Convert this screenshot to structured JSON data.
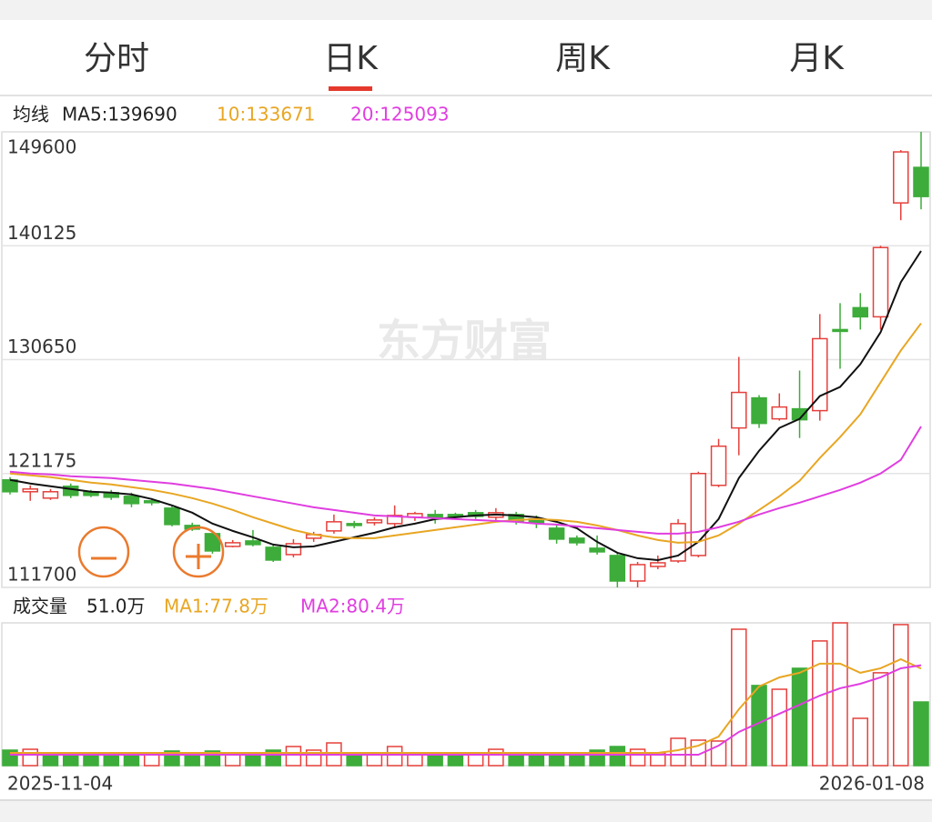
{
  "tabs": [
    "分时",
    "日K",
    "周K",
    "月K"
  ],
  "selected_tab": 1,
  "watermark": "东方财富",
  "chart_data": [
    {
      "type": "candlestick",
      "legend_title": "均线",
      "ylim": [
        111700,
        149600
      ],
      "yticks": [
        149600,
        140125,
        130650,
        121175,
        111700
      ],
      "grid": true,
      "up_color": "#e5403b",
      "down_color": "#3dac3a",
      "open": [
        120644,
        119659,
        119128,
        120114,
        119659,
        119583,
        119280,
        118901,
        118295,
        116854,
        116172,
        115111,
        115566,
        115035,
        114429,
        115793,
        116400,
        117006,
        117082,
        117006,
        117537,
        117764,
        117764,
        117916,
        117537,
        117764,
        117385,
        116627,
        115793,
        114959,
        114353,
        112231,
        113443,
        113898,
        114353,
        120190,
        124965,
        127466,
        125723,
        126557,
        126405,
        133151,
        134971,
        134213,
        143688,
        146644
      ],
      "high": [
        120872,
        120190,
        119886,
        120341,
        119811,
        119811,
        119583,
        119128,
        118522,
        117082,
        116400,
        115642,
        116475,
        115263,
        115717,
        116324,
        117764,
        117233,
        117537,
        118522,
        117991,
        118143,
        117916,
        118143,
        118295,
        117991,
        117688,
        116930,
        116021,
        116021,
        114656,
        113822,
        114353,
        117385,
        121327,
        124055,
        130877,
        127694,
        127845,
        129740,
        134440,
        135350,
        136183,
        140125,
        148084,
        149600
      ],
      "low": [
        119432,
        118901,
        118977,
        119128,
        119204,
        118977,
        118370,
        118522,
        116779,
        116400,
        114505,
        115035,
        115111,
        113822,
        114201,
        115490,
        116172,
        116627,
        116854,
        116627,
        117233,
        117006,
        117385,
        117385,
        117233,
        116930,
        116627,
        115338,
        115187,
        114429,
        111700,
        111700,
        113216,
        113747,
        114201,
        120038,
        122691,
        124965,
        125571,
        124131,
        125571,
        129892,
        133151,
        133151,
        142247,
        143157
      ],
      "close": [
        119659,
        119886,
        119659,
        119356,
        119356,
        119204,
        118674,
        118749,
        116930,
        116551,
        114732,
        115414,
        115263,
        113974,
        115338,
        116096,
        117158,
        116854,
        117309,
        117688,
        117840,
        117537,
        117612,
        117612,
        117916,
        117233,
        117082,
        115717,
        115414,
        114656,
        112231,
        113595,
        113747,
        117006,
        121175,
        123449,
        127921,
        125344,
        126708,
        125647,
        132393,
        133000,
        134213,
        139973,
        147932,
        144218
      ],
      "series": [
        {
          "name": "MA5:139690",
          "color": "#111111",
          "values": [
            120644,
            120341,
            120114,
            119886,
            119659,
            119583,
            119432,
            119053,
            118522,
            117916,
            117006,
            116400,
            115869,
            115263,
            115035,
            115111,
            115490,
            115869,
            116248,
            116703,
            117006,
            117385,
            117537,
            117688,
            117764,
            117688,
            117537,
            117158,
            116627,
            115490,
            114580,
            114126,
            113974,
            114353,
            115490,
            117385,
            120796,
            123070,
            124965,
            125723,
            127618,
            128376,
            130271,
            132924,
            137093,
            139690
          ]
        },
        {
          "name": "10:133671",
          "color": "#e8a623",
          "values": [
            121175,
            121023,
            120872,
            120644,
            120417,
            120265,
            120038,
            119811,
            119507,
            119128,
            118674,
            118143,
            117537,
            117006,
            116475,
            116096,
            115869,
            115793,
            115793,
            116021,
            116248,
            116475,
            116703,
            116930,
            117158,
            117309,
            117385,
            117309,
            117158,
            116854,
            116475,
            116021,
            115642,
            115414,
            115490,
            116021,
            117006,
            118143,
            119280,
            120569,
            122464,
            124207,
            126102,
            128755,
            131408,
            133671
          ]
        },
        {
          "name": "20:125093",
          "color": "#e03ee0",
          "values": [
            121327,
            121175,
            121099,
            120948,
            120872,
            120796,
            120644,
            120493,
            120341,
            120114,
            119886,
            119583,
            119280,
            118977,
            118674,
            118370,
            118143,
            117916,
            117688,
            117612,
            117537,
            117461,
            117385,
            117309,
            117233,
            117158,
            117006,
            116930,
            116779,
            116627,
            116475,
            116324,
            116172,
            116172,
            116324,
            116703,
            117158,
            117764,
            118295,
            118749,
            119280,
            119811,
            120417,
            121175,
            122312,
            125093
          ]
        }
      ]
    },
    {
      "type": "bar",
      "title": "成交量",
      "current_label": "51.0万",
      "ylim": [
        0,
        114.4
      ],
      "categories": [
        "2025-11-04",
        null,
        null,
        null,
        null,
        null,
        null,
        null,
        null,
        null,
        null,
        null,
        null,
        null,
        null,
        null,
        null,
        null,
        null,
        null,
        null,
        null,
        null,
        null,
        null,
        null,
        null,
        null,
        null,
        null,
        null,
        null,
        null,
        null,
        null,
        null,
        null,
        null,
        null,
        null,
        null,
        null,
        null,
        null,
        null,
        "2026-01-08"
      ],
      "values": [
        12.4,
        13.1,
        8.7,
        10.2,
        8.7,
        8.7,
        8.7,
        8.7,
        11.7,
        10.2,
        11.7,
        8.7,
        10.2,
        12.4,
        15.3,
        12.4,
        18.2,
        10.2,
        10.2,
        15.3,
        10.2,
        8.7,
        8.7,
        10.2,
        13.1,
        8.7,
        10.2,
        8.7,
        8.7,
        12.4,
        15.3,
        13.1,
        10.2,
        21.9,
        20.4,
        19.7,
        109.3,
        64.2,
        61.2,
        78.0,
        99.9,
        114.4,
        37.9,
        74.4,
        113.0,
        51.0
      ],
      "colors": [
        "#3dac3a",
        "#e5403b",
        "#3dac3a",
        "#3dac3a",
        "#3dac3a",
        "#3dac3a",
        "#3dac3a",
        "#e5403b",
        "#3dac3a",
        "#3dac3a",
        "#3dac3a",
        "#e5403b",
        "#3dac3a",
        "#3dac3a",
        "#e5403b",
        "#e5403b",
        "#e5403b",
        "#3dac3a",
        "#e5403b",
        "#e5403b",
        "#e5403b",
        "#3dac3a",
        "#3dac3a",
        "#e5403b",
        "#e5403b",
        "#3dac3a",
        "#3dac3a",
        "#3dac3a",
        "#3dac3a",
        "#3dac3a",
        "#3dac3a",
        "#e5403b",
        "#e5403b",
        "#e5403b",
        "#e5403b",
        "#e5403b",
        "#e5403b",
        "#3dac3a",
        "#e5403b",
        "#3dac3a",
        "#e5403b",
        "#e5403b",
        "#e5403b",
        "#e5403b",
        "#e5403b",
        "#3dac3a"
      ],
      "series": [
        {
          "name": "MA1:77.8万",
          "color": "#e8a623",
          "values": [
            10.2,
            10.2,
            10.2,
            10.2,
            10.2,
            10.2,
            10.2,
            10.2,
            10.2,
            10.2,
            10.2,
            10.2,
            10.2,
            10.2,
            10.2,
            10.2,
            10.2,
            10.2,
            10.2,
            10.2,
            10.2,
            10.2,
            10.2,
            10.2,
            10.2,
            10.2,
            10.2,
            10.2,
            10.2,
            10.2,
            10.2,
            10.2,
            10.2,
            12.4,
            16.0,
            23.3,
            45.2,
            63.4,
            70.7,
            74.4,
            81.7,
            81.7,
            74.4,
            78.0,
            85.3,
            77.8
          ]
        },
        {
          "name": "MA2:80.4万",
          "color": "#e03ee0",
          "values": [
            8.7,
            8.7,
            8.7,
            8.7,
            8.7,
            8.7,
            8.7,
            8.7,
            8.7,
            8.7,
            8.7,
            8.7,
            8.7,
            8.7,
            8.7,
            8.7,
            8.7,
            8.7,
            8.7,
            8.7,
            8.7,
            8.7,
            8.7,
            8.7,
            8.7,
            8.7,
            8.7,
            8.7,
            8.7,
            8.7,
            8.7,
            8.7,
            8.7,
            8.7,
            8.7,
            16.0,
            27.0,
            34.3,
            41.6,
            48.8,
            56.1,
            62.0,
            65.6,
            70.7,
            78.0,
            80.4
          ]
        }
      ]
    }
  ]
}
